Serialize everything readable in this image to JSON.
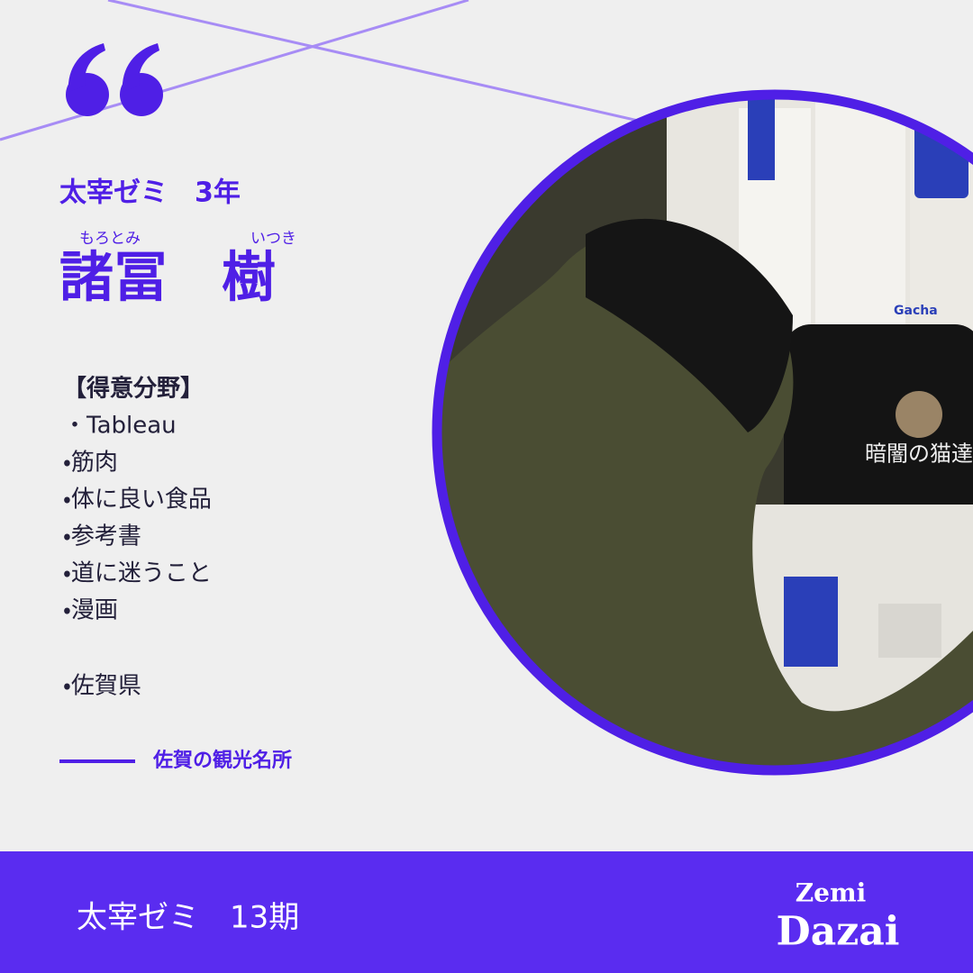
{
  "header": {
    "class_label": "太宰ゼミ　3年",
    "name_ruby": [
      "もろとみ",
      "いつき"
    ],
    "name": "諸冨　樹"
  },
  "specialties": {
    "title": "【得意分野】",
    "items": [
      "・Tableau",
      "・筋肉",
      "・体に良い食品",
      "・参考書",
      "・道に迷うこと",
      "・漫画"
    ]
  },
  "hometown": "・佐賀県",
  "link_label": "佐賀の観光名所",
  "photo": {
    "machine_label": "Gacha",
    "caption": "暗闇の猫達"
  },
  "footer": {
    "title": "太宰ゼミ　13期",
    "logo_line1": "Zemi",
    "logo_line2": "Dazai"
  }
}
